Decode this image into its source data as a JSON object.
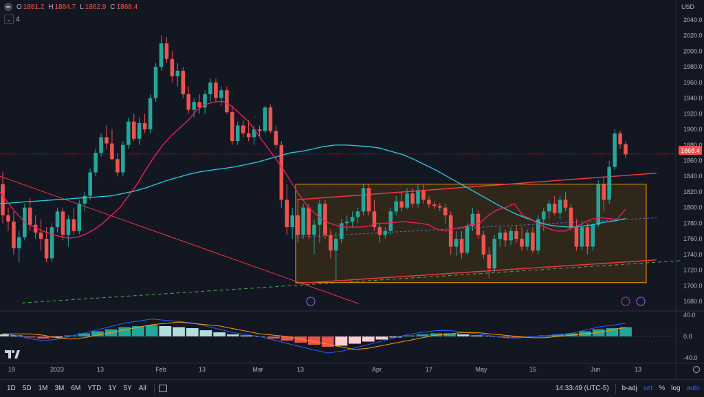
{
  "header": {
    "ohlc": [
      {
        "k": "O",
        "v": "1881.2"
      },
      {
        "k": "H",
        "v": "1884.7"
      },
      {
        "k": "L",
        "v": "1862.9"
      },
      {
        "k": "C",
        "v": "1868.4"
      }
    ],
    "indicators_count": "4",
    "currency": "USD",
    "currency_icon": "circle-coin-icon"
  },
  "last_price_label": "1868.4",
  "colors": {
    "background": "#131722",
    "up": "#26a69a",
    "down": "#ef5350",
    "ma_fast": "#e91e63",
    "ma_slow": "#26c6da",
    "macd": "#2962ff",
    "signal": "#ff9800",
    "box_border": "#f59f00",
    "box_fill": "#3b2e1a",
    "channel": "#f23645",
    "trend_green": "#4caf50"
  },
  "chart_data": [
    {
      "type": "candlestick",
      "ylim": [
        1680,
        2040
      ],
      "y_ticks": [
        "2040.0",
        "2020.0",
        "2000.0",
        "1980.0",
        "1960.0",
        "1940.0",
        "1920.0",
        "1900.0",
        "1880.0",
        "1860.0",
        "1840.0",
        "1820.0",
        "1800.0",
        "1780.0",
        "1760.0",
        "1740.0",
        "1720.0",
        "1700.0",
        "1680.0"
      ],
      "x_ticks": [
        "19",
        "2023",
        "13",
        "Feb",
        "13",
        "Mar",
        "13",
        "Apr",
        "17",
        "May",
        "15",
        "Jun",
        "13"
      ],
      "candles": [
        {
          "o": 1830,
          "h": 1845,
          "l": 1780,
          "c": 1790
        },
        {
          "o": 1790,
          "h": 1800,
          "l": 1770,
          "c": 1782
        },
        {
          "o": 1782,
          "h": 1795,
          "l": 1740,
          "c": 1748
        },
        {
          "o": 1748,
          "h": 1770,
          "l": 1730,
          "c": 1762
        },
        {
          "o": 1762,
          "h": 1805,
          "l": 1758,
          "c": 1800
        },
        {
          "o": 1800,
          "h": 1812,
          "l": 1770,
          "c": 1778
        },
        {
          "o": 1778,
          "h": 1790,
          "l": 1760,
          "c": 1768
        },
        {
          "o": 1768,
          "h": 1785,
          "l": 1745,
          "c": 1760
        },
        {
          "o": 1760,
          "h": 1775,
          "l": 1730,
          "c": 1735
        },
        {
          "o": 1735,
          "h": 1780,
          "l": 1730,
          "c": 1775
        },
        {
          "o": 1775,
          "h": 1800,
          "l": 1768,
          "c": 1795
        },
        {
          "o": 1795,
          "h": 1800,
          "l": 1758,
          "c": 1765
        },
        {
          "o": 1765,
          "h": 1790,
          "l": 1750,
          "c": 1785
        },
        {
          "o": 1785,
          "h": 1800,
          "l": 1765,
          "c": 1770
        },
        {
          "o": 1770,
          "h": 1810,
          "l": 1766,
          "c": 1805
        },
        {
          "o": 1805,
          "h": 1820,
          "l": 1795,
          "c": 1815
        },
        {
          "o": 1815,
          "h": 1850,
          "l": 1810,
          "c": 1845
        },
        {
          "o": 1845,
          "h": 1875,
          "l": 1840,
          "c": 1870
        },
        {
          "o": 1870,
          "h": 1895,
          "l": 1865,
          "c": 1890
        },
        {
          "o": 1890,
          "h": 1905,
          "l": 1875,
          "c": 1882
        },
        {
          "o": 1882,
          "h": 1900,
          "l": 1860,
          "c": 1862
        },
        {
          "o": 1862,
          "h": 1870,
          "l": 1840,
          "c": 1845
        },
        {
          "o": 1845,
          "h": 1885,
          "l": 1840,
          "c": 1880
        },
        {
          "o": 1880,
          "h": 1915,
          "l": 1875,
          "c": 1910
        },
        {
          "o": 1910,
          "h": 1920,
          "l": 1885,
          "c": 1888
        },
        {
          "o": 1888,
          "h": 1915,
          "l": 1880,
          "c": 1908
        },
        {
          "o": 1908,
          "h": 1920,
          "l": 1895,
          "c": 1900
        },
        {
          "o": 1900,
          "h": 1945,
          "l": 1895,
          "c": 1940
        },
        {
          "o": 1940,
          "h": 1985,
          "l": 1935,
          "c": 1980
        },
        {
          "o": 1980,
          "h": 2020,
          "l": 1975,
          "c": 2010
        },
        {
          "o": 2010,
          "h": 2018,
          "l": 1985,
          "c": 1990
        },
        {
          "o": 1990,
          "h": 2000,
          "l": 1960,
          "c": 1968
        },
        {
          "o": 1968,
          "h": 1985,
          "l": 1955,
          "c": 1975
        },
        {
          "o": 1975,
          "h": 1980,
          "l": 1940,
          "c": 1945
        },
        {
          "o": 1945,
          "h": 1955,
          "l": 1920,
          "c": 1925
        },
        {
          "o": 1925,
          "h": 1940,
          "l": 1915,
          "c": 1935
        },
        {
          "o": 1935,
          "h": 1945,
          "l": 1920,
          "c": 1928
        },
        {
          "o": 1928,
          "h": 1950,
          "l": 1920,
          "c": 1945
        },
        {
          "o": 1945,
          "h": 1965,
          "l": 1935,
          "c": 1960
        },
        {
          "o": 1960,
          "h": 1965,
          "l": 1935,
          "c": 1940
        },
        {
          "o": 1940,
          "h": 1955,
          "l": 1930,
          "c": 1950
        },
        {
          "o": 1950,
          "h": 1955,
          "l": 1920,
          "c": 1922
        },
        {
          "o": 1922,
          "h": 1930,
          "l": 1880,
          "c": 1885
        },
        {
          "o": 1885,
          "h": 1910,
          "l": 1880,
          "c": 1905
        },
        {
          "o": 1905,
          "h": 1912,
          "l": 1890,
          "c": 1895
        },
        {
          "o": 1895,
          "h": 1912,
          "l": 1885,
          "c": 1890
        },
        {
          "o": 1890,
          "h": 1905,
          "l": 1880,
          "c": 1900
        },
        {
          "o": 1900,
          "h": 1905,
          "l": 1890,
          "c": 1898
        },
        {
          "o": 1898,
          "h": 1930,
          "l": 1895,
          "c": 1928
        },
        {
          "o": 1928,
          "h": 1932,
          "l": 1895,
          "c": 1898
        },
        {
          "o": 1898,
          "h": 1905,
          "l": 1875,
          "c": 1880
        },
        {
          "o": 1880,
          "h": 1885,
          "l": 1800,
          "c": 1810
        },
        {
          "o": 1810,
          "h": 1830,
          "l": 1765,
          "c": 1775
        },
        {
          "o": 1775,
          "h": 1800,
          "l": 1760,
          "c": 1790
        },
        {
          "o": 1790,
          "h": 1810,
          "l": 1755,
          "c": 1765
        },
        {
          "o": 1765,
          "h": 1805,
          "l": 1760,
          "c": 1800
        },
        {
          "o": 1800,
          "h": 1805,
          "l": 1760,
          "c": 1765
        },
        {
          "o": 1765,
          "h": 1785,
          "l": 1740,
          "c": 1778
        },
        {
          "o": 1778,
          "h": 1810,
          "l": 1755,
          "c": 1805
        },
        {
          "o": 1805,
          "h": 1810,
          "l": 1760,
          "c": 1765
        },
        {
          "o": 1765,
          "h": 1772,
          "l": 1735,
          "c": 1745
        },
        {
          "o": 1745,
          "h": 1768,
          "l": 1705,
          "c": 1760
        },
        {
          "o": 1760,
          "h": 1785,
          "l": 1755,
          "c": 1780
        },
        {
          "o": 1780,
          "h": 1790,
          "l": 1770,
          "c": 1782
        },
        {
          "o": 1782,
          "h": 1795,
          "l": 1775,
          "c": 1788
        },
        {
          "o": 1788,
          "h": 1800,
          "l": 1780,
          "c": 1795
        },
        {
          "o": 1795,
          "h": 1830,
          "l": 1790,
          "c": 1825
        },
        {
          "o": 1825,
          "h": 1830,
          "l": 1790,
          "c": 1795
        },
        {
          "o": 1795,
          "h": 1810,
          "l": 1770,
          "c": 1775
        },
        {
          "o": 1775,
          "h": 1780,
          "l": 1755,
          "c": 1765
        },
        {
          "o": 1765,
          "h": 1775,
          "l": 1760,
          "c": 1770
        },
        {
          "o": 1770,
          "h": 1800,
          "l": 1765,
          "c": 1795
        },
        {
          "o": 1795,
          "h": 1815,
          "l": 1790,
          "c": 1808
        },
        {
          "o": 1808,
          "h": 1820,
          "l": 1795,
          "c": 1800
        },
        {
          "o": 1800,
          "h": 1825,
          "l": 1798,
          "c": 1818
        },
        {
          "o": 1818,
          "h": 1825,
          "l": 1800,
          "c": 1805
        },
        {
          "o": 1805,
          "h": 1830,
          "l": 1800,
          "c": 1822
        },
        {
          "o": 1822,
          "h": 1830,
          "l": 1805,
          "c": 1810
        },
        {
          "o": 1810,
          "h": 1815,
          "l": 1800,
          "c": 1804
        },
        {
          "o": 1804,
          "h": 1808,
          "l": 1798,
          "c": 1802
        },
        {
          "o": 1802,
          "h": 1806,
          "l": 1796,
          "c": 1800
        },
        {
          "o": 1800,
          "h": 1805,
          "l": 1780,
          "c": 1790
        },
        {
          "o": 1790,
          "h": 1795,
          "l": 1740,
          "c": 1750
        },
        {
          "o": 1750,
          "h": 1770,
          "l": 1738,
          "c": 1760
        },
        {
          "o": 1760,
          "h": 1770,
          "l": 1735,
          "c": 1742
        },
        {
          "o": 1742,
          "h": 1780,
          "l": 1740,
          "c": 1776
        },
        {
          "o": 1776,
          "h": 1800,
          "l": 1770,
          "c": 1792
        },
        {
          "o": 1792,
          "h": 1797,
          "l": 1760,
          "c": 1765
        },
        {
          "o": 1765,
          "h": 1770,
          "l": 1735,
          "c": 1740
        },
        {
          "o": 1740,
          "h": 1750,
          "l": 1710,
          "c": 1722
        },
        {
          "o": 1722,
          "h": 1765,
          "l": 1718,
          "c": 1760
        },
        {
          "o": 1760,
          "h": 1775,
          "l": 1750,
          "c": 1768
        },
        {
          "o": 1768,
          "h": 1772,
          "l": 1750,
          "c": 1758
        },
        {
          "o": 1758,
          "h": 1775,
          "l": 1752,
          "c": 1770
        },
        {
          "o": 1770,
          "h": 1776,
          "l": 1755,
          "c": 1760
        },
        {
          "o": 1760,
          "h": 1775,
          "l": 1745,
          "c": 1750
        },
        {
          "o": 1750,
          "h": 1772,
          "l": 1745,
          "c": 1768
        },
        {
          "o": 1768,
          "h": 1775,
          "l": 1742,
          "c": 1745
        },
        {
          "o": 1745,
          "h": 1790,
          "l": 1740,
          "c": 1785
        },
        {
          "o": 1785,
          "h": 1800,
          "l": 1770,
          "c": 1795
        },
        {
          "o": 1795,
          "h": 1810,
          "l": 1785,
          "c": 1805
        },
        {
          "o": 1805,
          "h": 1815,
          "l": 1790,
          "c": 1793
        },
        {
          "o": 1793,
          "h": 1815,
          "l": 1785,
          "c": 1810
        },
        {
          "o": 1810,
          "h": 1820,
          "l": 1795,
          "c": 1800
        },
        {
          "o": 1800,
          "h": 1805,
          "l": 1770,
          "c": 1775
        },
        {
          "o": 1775,
          "h": 1785,
          "l": 1745,
          "c": 1750
        },
        {
          "o": 1750,
          "h": 1780,
          "l": 1745,
          "c": 1775
        },
        {
          "o": 1775,
          "h": 1780,
          "l": 1740,
          "c": 1750
        },
        {
          "o": 1750,
          "h": 1780,
          "l": 1745,
          "c": 1778
        },
        {
          "o": 1778,
          "h": 1835,
          "l": 1775,
          "c": 1830
        },
        {
          "o": 1830,
          "h": 1840,
          "l": 1795,
          "c": 1810
        },
        {
          "o": 1810,
          "h": 1860,
          "l": 1805,
          "c": 1852
        },
        {
          "o": 1852,
          "h": 1900,
          "l": 1848,
          "c": 1895
        },
        {
          "o": 1895,
          "h": 1898,
          "l": 1875,
          "c": 1881
        },
        {
          "o": 1881,
          "h": 1885,
          "l": 1863,
          "c": 1868
        }
      ],
      "ma_fast": [
        1820,
        1805,
        1792,
        1780,
        1775,
        1770,
        1766,
        1763,
        1761,
        1762,
        1766,
        1772,
        1780,
        1790,
        1800,
        1815,
        1830,
        1848,
        1865,
        1880,
        1892,
        1902,
        1912,
        1925,
        1932,
        1935,
        1936,
        1930,
        1920,
        1910,
        1895,
        1880,
        1865,
        1850,
        1832,
        1815,
        1800,
        1790,
        1782,
        1778,
        1775,
        1775,
        1775,
        1776,
        1780,
        1780,
        1781,
        1782,
        1781,
        1780,
        1778,
        1772,
        1770,
        1773,
        1775,
        1778,
        1780,
        1790,
        1797,
        1800,
        1805,
        1790,
        1785,
        1778,
        1773,
        1770,
        1770,
        1775,
        1780,
        1785,
        1787,
        1786,
        1785,
        1798
      ],
      "ma_slow": [
        1805,
        1806,
        1807,
        1808,
        1809,
        1810,
        1811,
        1812,
        1813,
        1814,
        1815,
        1818,
        1821,
        1825,
        1830,
        1835,
        1839,
        1843,
        1846,
        1848,
        1850,
        1852,
        1855,
        1858,
        1862,
        1866,
        1870,
        1872,
        1875,
        1878,
        1880,
        1880,
        1879,
        1878,
        1876,
        1872,
        1868,
        1862,
        1855,
        1848,
        1840,
        1832,
        1824,
        1816,
        1808,
        1800,
        1793,
        1787,
        1782,
        1778,
        1776,
        1775,
        1776,
        1778,
        1781,
        1783,
        1786
      ],
      "macd_hist": [
        0.2,
        0.1,
        -0.1,
        -0.2,
        -0.1,
        0.1,
        0.3,
        0.5,
        0.7,
        0.9,
        1.0,
        1.1,
        1.0,
        0.9,
        0.8,
        0.6,
        0.4,
        0.2,
        0.1,
        0.0,
        -0.2,
        -0.4,
        -0.6,
        -0.8,
        -1.0,
        -0.9,
        -0.7,
        -0.5,
        -0.3,
        -0.1,
        0.1,
        0.2,
        0.3,
        0.3,
        0.2,
        0.1,
        0.0,
        -0.1,
        -0.1,
        0.0,
        0.1,
        0.2,
        0.3,
        0.5,
        0.7,
        0.8,
        0.9
      ]
    }
  ],
  "bottom": {
    "ranges": [
      "1D",
      "5D",
      "1M",
      "3M",
      "6M",
      "YTD",
      "1Y",
      "5Y",
      "All"
    ],
    "calendar_icon": "calendar-icon",
    "time": "14:33:49 (UTC-5)",
    "b_adj": "b-adj",
    "set": "set",
    "percent": "%",
    "log": "log",
    "auto": "auto"
  },
  "macd_ticks": [
    "40.0",
    "0.0",
    "-40.0"
  ]
}
